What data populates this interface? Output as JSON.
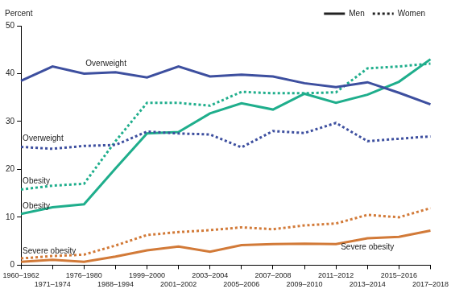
{
  "chart_data": {
    "type": "line",
    "y_label": "Percent",
    "categories": [
      "1960–1962",
      "1971–1974",
      "1976–1980",
      "1988–1994",
      "1999–2000",
      "2001–2002",
      "2003–2004",
      "2005–2006",
      "2007–2008",
      "2009–2010",
      "2011–2012",
      "2013–2014",
      "2015–2016",
      "2017–2018"
    ],
    "ylim": [
      0,
      50
    ],
    "yticks": [
      0,
      10,
      20,
      30,
      40,
      50
    ],
    "grid": false,
    "legend": "top right",
    "series": [
      {
        "name": "Men",
        "label": "Overweight",
        "color": "#3d4f9f",
        "line_style": "solid",
        "values": [
          38.5,
          41.5,
          40.0,
          40.3,
          39.2,
          41.5,
          39.4,
          39.8,
          39.4,
          38.0,
          37.2,
          38.2,
          36.0,
          33.6
        ]
      },
      {
        "name": "Women",
        "label": "Overweight",
        "color": "#3d4f9f",
        "line_style": "dotted",
        "values": [
          24.7,
          24.3,
          24.9,
          25.1,
          27.9,
          27.5,
          27.3,
          24.6,
          28.0,
          27.6,
          29.7,
          25.9,
          26.4,
          26.9
        ]
      },
      {
        "name": "Men",
        "label": "Obesity",
        "color": "#1fae8c",
        "line_style": "solid",
        "values": [
          10.7,
          12.1,
          12.7,
          20.2,
          27.5,
          27.8,
          31.7,
          33.8,
          32.5,
          35.8,
          33.9,
          35.6,
          38.3,
          43.0
        ]
      },
      {
        "name": "Women",
        "label": "Obesity",
        "color": "#1fae8c",
        "line_style": "dotted",
        "values": [
          15.8,
          16.6,
          17.0,
          25.9,
          33.9,
          33.9,
          33.3,
          36.2,
          35.9,
          35.9,
          36.1,
          41.1,
          41.5,
          42.1
        ]
      },
      {
        "name": "Men",
        "label": "Severe obesity",
        "color": "#d27a38",
        "line_style": "solid",
        "values": [
          0.7,
          1.1,
          0.7,
          1.8,
          3.1,
          3.9,
          2.8,
          4.2,
          4.4,
          4.5,
          4.4,
          5.6,
          5.9,
          7.2
        ]
      },
      {
        "name": "Women",
        "label": "Severe obesity",
        "color": "#d27a38",
        "line_style": "dotted",
        "values": [
          1.4,
          1.9,
          2.2,
          4.1,
          6.3,
          6.9,
          7.3,
          7.9,
          7.5,
          8.3,
          8.7,
          10.5,
          10.0,
          11.9
        ]
      }
    ]
  }
}
